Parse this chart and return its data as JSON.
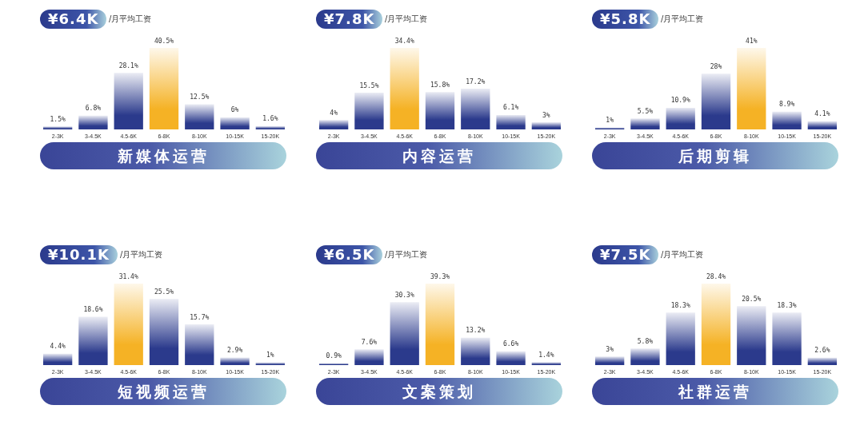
{
  "chart_data": [
    {
      "type": "bar",
      "title": "新媒体运营",
      "subtitle": "¥6.4K",
      "annotations": [
        "/月平均工资"
      ],
      "categories": [
        "2-3K",
        "3-4.5K",
        "4.5-6K",
        "6-8K",
        "8-10K",
        "10-15K",
        "15-20K"
      ],
      "values": [
        1.5,
        6.8,
        28.1,
        40.5,
        12.5,
        6,
        1.6
      ],
      "value_labels": [
        "1.5%",
        "6.8%",
        "28.1%",
        "40.5%",
        "12.5%",
        "6%",
        "1.6%"
      ],
      "colors": [
        "#2b3a8c",
        "#2b3a8c",
        "#2b3a8c",
        "#f5b225",
        "#2b3a8c",
        "#2b3a8c",
        "#2b3a8c"
      ]
    },
    {
      "type": "bar",
      "title": "内容运营",
      "subtitle": "¥7.8K",
      "annotations": [
        "/月平均工资"
      ],
      "categories": [
        "2-3K",
        "3-4.5K",
        "4.5-6K",
        "6-8K",
        "8-10K",
        "10-15K",
        "15-20K"
      ],
      "values": [
        4,
        15.5,
        34.4,
        15.8,
        17.2,
        6.1,
        3
      ],
      "value_labels": [
        "4%",
        "15.5%",
        "34.4%",
        "15.8%",
        "17.2%",
        "6.1%",
        "3%"
      ],
      "colors": [
        "#2b3a8c",
        "#2b3a8c",
        "#f5b225",
        "#2b3a8c",
        "#2b3a8c",
        "#2b3a8c",
        "#2b3a8c"
      ]
    },
    {
      "type": "bar",
      "title": "后期剪辑",
      "subtitle": "¥5.8K",
      "annotations": [
        "/月平均工资"
      ],
      "categories": [
        "2-3K",
        "3-4.5K",
        "4.5-6K",
        "6-8K",
        "8-10K",
        "10-15K",
        "15-20K"
      ],
      "values": [
        1,
        5.5,
        10.9,
        28,
        41,
        8.9,
        4.1
      ],
      "value_labels": [
        "1%",
        "5.5%",
        "10.9%",
        "28%",
        "41%",
        "8.9%",
        "4.1%"
      ],
      "colors": [
        "#2b3a8c",
        "#2b3a8c",
        "#2b3a8c",
        "#2b3a8c",
        "#f5b225",
        "#2b3a8c",
        "#2b3a8c"
      ]
    },
    {
      "type": "bar",
      "title": "短视频运营",
      "subtitle": "¥10.1K",
      "annotations": [
        "/月平均工资"
      ],
      "categories": [
        "2-3K",
        "3-4.5K",
        "4.5-6K",
        "6-8K",
        "8-10K",
        "10-15K",
        "15-20K"
      ],
      "values": [
        4.4,
        18.6,
        31.4,
        25.5,
        15.7,
        2.9,
        1
      ],
      "value_labels": [
        "4.4%",
        "18.6%",
        "31.4%",
        "25.5%",
        "15.7%",
        "2.9%",
        "1%"
      ],
      "colors": [
        "#2b3a8c",
        "#2b3a8c",
        "#f5b225",
        "#2b3a8c",
        "#2b3a8c",
        "#2b3a8c",
        "#2b3a8c"
      ]
    },
    {
      "type": "bar",
      "title": "文案策划",
      "subtitle": "¥6.5K",
      "annotations": [
        "/月平均工资"
      ],
      "categories": [
        "2-3K",
        "3-4.5K",
        "4.5-6K",
        "6-8K",
        "8-10K",
        "10-15K",
        "15-20K"
      ],
      "values": [
        0.9,
        7.6,
        30.3,
        39.3,
        13.2,
        6.6,
        1.4
      ],
      "value_labels": [
        "0.9%",
        "7.6%",
        "30.3%",
        "39.3%",
        "13.2%",
        "6.6%",
        "1.4%"
      ],
      "colors": [
        "#2b3a8c",
        "#2b3a8c",
        "#2b3a8c",
        "#f5b225",
        "#2b3a8c",
        "#2b3a8c",
        "#2b3a8c"
      ]
    },
    {
      "type": "bar",
      "title": "社群运营",
      "subtitle": "¥7.5K",
      "annotations": [
        "/月平均工资"
      ],
      "categories": [
        "2-3K",
        "3-4.5K",
        "4.5-6K",
        "6-8K",
        "8-10K",
        "10-15K",
        "15-20K"
      ],
      "values": [
        3,
        5.8,
        18.3,
        28.4,
        20.5,
        18.3,
        2.6
      ],
      "value_labels": [
        "3%",
        "5.8%",
        "18.3%",
        "28.4%",
        "20.5%",
        "18.3%",
        "2.6%"
      ],
      "colors": [
        "#2b3a8c",
        "#2b3a8c",
        "#2b3a8c",
        "#f5b225",
        "#2b3a8c",
        "#2b3a8c",
        "#2b3a8c"
      ]
    }
  ]
}
